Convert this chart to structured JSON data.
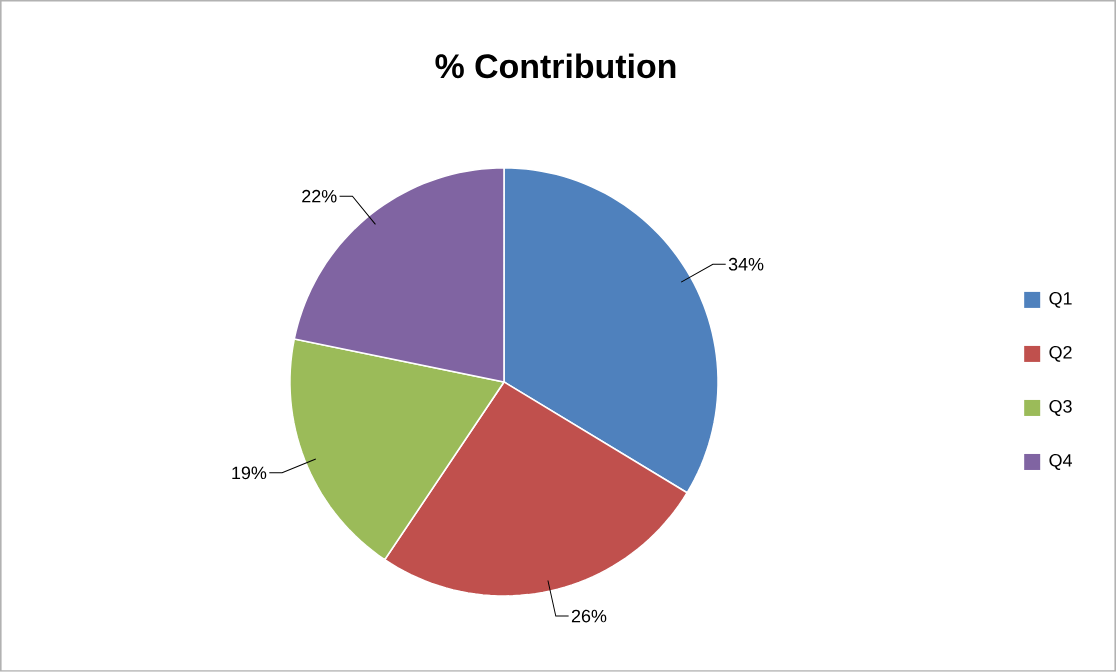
{
  "chart_data": {
    "type": "pie",
    "title": "% Contribution",
    "categories": [
      "Q1",
      "Q2",
      "Q3",
      "Q4"
    ],
    "values": [
      34,
      26,
      19,
      22
    ],
    "value_labels": [
      "34%",
      "26%",
      "19%",
      "22%"
    ],
    "colors": [
      "#4f81bd",
      "#c0504d",
      "#9bbb59",
      "#8064a2"
    ],
    "legend": "right"
  }
}
